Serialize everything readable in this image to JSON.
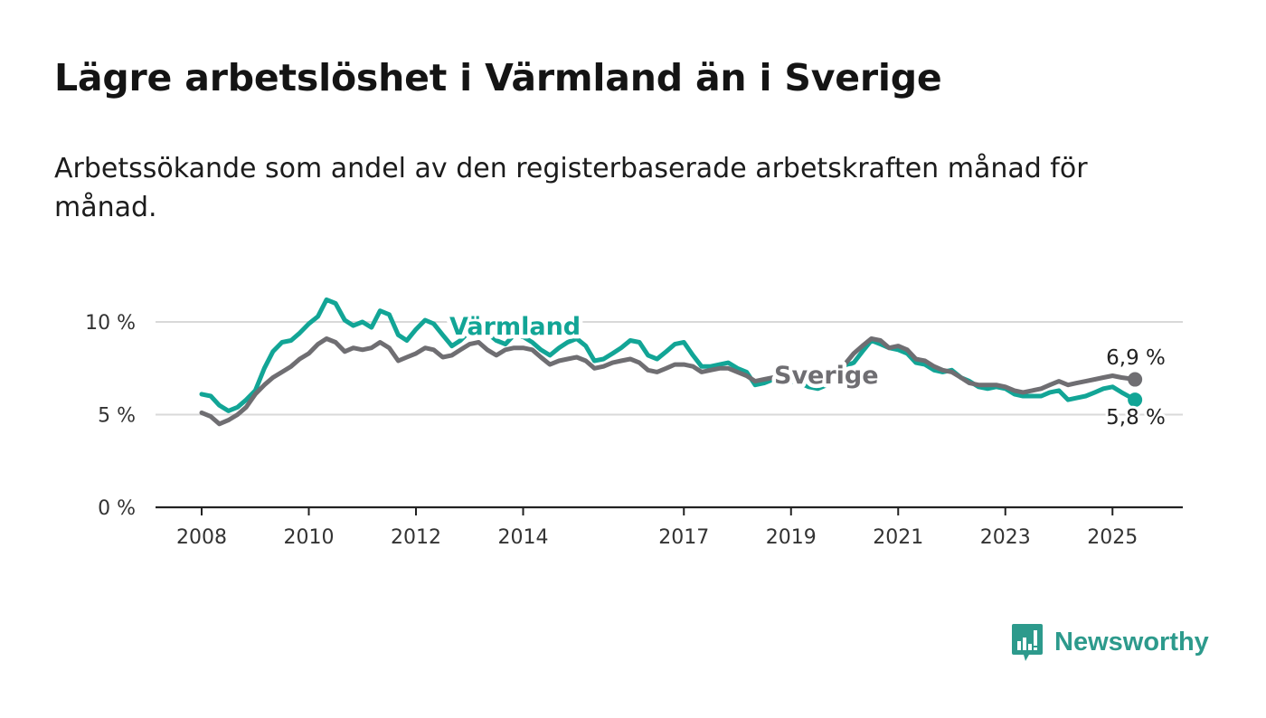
{
  "title": "Lägre arbetslöshet i Värmland än i Sverige",
  "subtitle": "Arbetssökande som andel av den registerbaserade arbetskraften månad för månad.",
  "brand": {
    "name": "Newsworthy",
    "color": "#2d9a8c"
  },
  "colors": {
    "varmland": "#12a596",
    "sverige": "#6f6e72",
    "grid": "#d9d9d9",
    "axis": "#222222"
  },
  "chart_data": {
    "type": "line",
    "title": "Lägre arbetslöshet i Värmland än i Sverige",
    "subtitle": "Arbetssökande som andel av den registerbaserade arbetskraften månad för månad.",
    "x_unit": "year",
    "xlim": [
      2007.5,
      2026.3
    ],
    "ylim": [
      0,
      10
    ],
    "y_ticks": [
      0,
      5,
      10
    ],
    "y_tick_labels": [
      "0 %",
      "5 %",
      "10 %"
    ],
    "x_ticks": [
      2008,
      2010,
      2012,
      2014,
      2017,
      2019,
      2021,
      2023,
      2025
    ],
    "x_tick_labels": [
      "2008",
      "2010",
      "2012",
      "2014",
      "2017",
      "2019",
      "2021",
      "2023",
      "2025"
    ],
    "grid": true,
    "series": [
      {
        "name": "Värmland",
        "color": "#12a596",
        "end_label": "5,8 %",
        "points": [
          [
            2008.0,
            6.1
          ],
          [
            2008.17,
            6.0
          ],
          [
            2008.33,
            5.5
          ],
          [
            2008.5,
            5.2
          ],
          [
            2008.67,
            5.4
          ],
          [
            2008.83,
            5.8
          ],
          [
            2009.0,
            6.3
          ],
          [
            2009.17,
            7.5
          ],
          [
            2009.33,
            8.4
          ],
          [
            2009.5,
            8.9
          ],
          [
            2009.67,
            9.0
          ],
          [
            2009.83,
            9.4
          ],
          [
            2010.0,
            9.9
          ],
          [
            2010.17,
            10.3
          ],
          [
            2010.33,
            11.2
          ],
          [
            2010.5,
            11.0
          ],
          [
            2010.67,
            10.1
          ],
          [
            2010.83,
            9.8
          ],
          [
            2011.0,
            10.0
          ],
          [
            2011.17,
            9.7
          ],
          [
            2011.33,
            10.6
          ],
          [
            2011.5,
            10.4
          ],
          [
            2011.67,
            9.3
          ],
          [
            2011.83,
            9.0
          ],
          [
            2012.0,
            9.6
          ],
          [
            2012.17,
            10.1
          ],
          [
            2012.33,
            9.9
          ],
          [
            2012.5,
            9.3
          ],
          [
            2012.67,
            8.7
          ],
          [
            2012.83,
            9.0
          ],
          [
            2013.0,
            9.5
          ],
          [
            2013.17,
            9.6
          ],
          [
            2013.33,
            9.4
          ],
          [
            2013.5,
            9.0
          ],
          [
            2013.67,
            8.8
          ],
          [
            2013.83,
            9.3
          ],
          [
            2014.0,
            9.2
          ],
          [
            2014.17,
            8.9
          ],
          [
            2014.33,
            8.5
          ],
          [
            2014.5,
            8.2
          ],
          [
            2014.67,
            8.6
          ],
          [
            2014.83,
            8.9
          ],
          [
            2015.0,
            9.1
          ],
          [
            2015.17,
            8.7
          ],
          [
            2015.33,
            7.9
          ],
          [
            2015.5,
            8.0
          ],
          [
            2015.67,
            8.3
          ],
          [
            2015.83,
            8.6
          ],
          [
            2016.0,
            9.0
          ],
          [
            2016.17,
            8.9
          ],
          [
            2016.33,
            8.2
          ],
          [
            2016.5,
            8.0
          ],
          [
            2016.67,
            8.4
          ],
          [
            2016.83,
            8.8
          ],
          [
            2017.0,
            8.9
          ],
          [
            2017.17,
            8.2
          ],
          [
            2017.33,
            7.6
          ],
          [
            2017.5,
            7.6
          ],
          [
            2017.67,
            7.7
          ],
          [
            2017.83,
            7.8
          ],
          [
            2018.0,
            7.5
          ],
          [
            2018.17,
            7.3
          ],
          [
            2018.33,
            6.6
          ],
          [
            2018.5,
            6.7
          ],
          [
            2018.67,
            6.9
          ],
          [
            2018.83,
            6.9
          ],
          [
            2019.0,
            6.8
          ],
          [
            2019.17,
            6.7
          ],
          [
            2019.33,
            6.5
          ],
          [
            2019.5,
            6.4
          ],
          [
            2019.67,
            6.6
          ],
          [
            2019.83,
            7.0
          ],
          [
            2020.0,
            7.6
          ],
          [
            2020.17,
            7.8
          ],
          [
            2020.33,
            8.4
          ],
          [
            2020.5,
            9.0
          ],
          [
            2020.67,
            8.8
          ],
          [
            2020.83,
            8.6
          ],
          [
            2021.0,
            8.5
          ],
          [
            2021.17,
            8.3
          ],
          [
            2021.33,
            7.8
          ],
          [
            2021.5,
            7.7
          ],
          [
            2021.67,
            7.4
          ],
          [
            2021.83,
            7.3
          ],
          [
            2022.0,
            7.4
          ],
          [
            2022.17,
            7.0
          ],
          [
            2022.33,
            6.8
          ],
          [
            2022.5,
            6.5
          ],
          [
            2022.67,
            6.4
          ],
          [
            2022.83,
            6.5
          ],
          [
            2023.0,
            6.4
          ],
          [
            2023.17,
            6.1
          ],
          [
            2023.33,
            6.0
          ],
          [
            2023.5,
            6.0
          ],
          [
            2023.67,
            6.0
          ],
          [
            2023.83,
            6.2
          ],
          [
            2024.0,
            6.3
          ],
          [
            2024.17,
            5.8
          ],
          [
            2024.33,
            5.9
          ],
          [
            2024.5,
            6.0
          ],
          [
            2024.67,
            6.2
          ],
          [
            2024.83,
            6.4
          ],
          [
            2025.0,
            6.5
          ],
          [
            2025.17,
            6.2
          ],
          [
            2025.42,
            5.8
          ]
        ]
      },
      {
        "name": "Sverige",
        "color": "#6f6e72",
        "end_label": "6,9 %",
        "points": [
          [
            2008.0,
            5.1
          ],
          [
            2008.17,
            4.9
          ],
          [
            2008.33,
            4.5
          ],
          [
            2008.5,
            4.7
          ],
          [
            2008.67,
            5.0
          ],
          [
            2008.83,
            5.4
          ],
          [
            2009.0,
            6.1
          ],
          [
            2009.17,
            6.6
          ],
          [
            2009.33,
            7.0
          ],
          [
            2009.5,
            7.3
          ],
          [
            2009.67,
            7.6
          ],
          [
            2009.83,
            8.0
          ],
          [
            2010.0,
            8.3
          ],
          [
            2010.17,
            8.8
          ],
          [
            2010.33,
            9.1
          ],
          [
            2010.5,
            8.9
          ],
          [
            2010.67,
            8.4
          ],
          [
            2010.83,
            8.6
          ],
          [
            2011.0,
            8.5
          ],
          [
            2011.17,
            8.6
          ],
          [
            2011.33,
            8.9
          ],
          [
            2011.5,
            8.6
          ],
          [
            2011.67,
            7.9
          ],
          [
            2011.83,
            8.1
          ],
          [
            2012.0,
            8.3
          ],
          [
            2012.17,
            8.6
          ],
          [
            2012.33,
            8.5
          ],
          [
            2012.5,
            8.1
          ],
          [
            2012.67,
            8.2
          ],
          [
            2012.83,
            8.5
          ],
          [
            2013.0,
            8.8
          ],
          [
            2013.17,
            8.9
          ],
          [
            2013.33,
            8.5
          ],
          [
            2013.5,
            8.2
          ],
          [
            2013.67,
            8.5
          ],
          [
            2013.83,
            8.6
          ],
          [
            2014.0,
            8.6
          ],
          [
            2014.17,
            8.5
          ],
          [
            2014.33,
            8.1
          ],
          [
            2014.5,
            7.7
          ],
          [
            2014.67,
            7.9
          ],
          [
            2014.83,
            8.0
          ],
          [
            2015.0,
            8.1
          ],
          [
            2015.17,
            7.9
          ],
          [
            2015.33,
            7.5
          ],
          [
            2015.5,
            7.6
          ],
          [
            2015.67,
            7.8
          ],
          [
            2015.83,
            7.9
          ],
          [
            2016.0,
            8.0
          ],
          [
            2016.17,
            7.8
          ],
          [
            2016.33,
            7.4
          ],
          [
            2016.5,
            7.3
          ],
          [
            2016.67,
            7.5
          ],
          [
            2016.83,
            7.7
          ],
          [
            2017.0,
            7.7
          ],
          [
            2017.17,
            7.6
          ],
          [
            2017.33,
            7.3
          ],
          [
            2017.5,
            7.4
          ],
          [
            2017.67,
            7.5
          ],
          [
            2017.83,
            7.5
          ],
          [
            2018.0,
            7.3
          ],
          [
            2018.17,
            7.1
          ],
          [
            2018.33,
            6.8
          ],
          [
            2018.5,
            6.9
          ],
          [
            2018.67,
            7.0
          ],
          [
            2018.83,
            6.9
          ],
          [
            2019.0,
            6.9
          ],
          [
            2019.17,
            6.9
          ],
          [
            2019.33,
            6.9
          ],
          [
            2019.5,
            7.0
          ],
          [
            2019.67,
            7.1
          ],
          [
            2019.83,
            7.3
          ],
          [
            2020.0,
            7.7
          ],
          [
            2020.17,
            8.3
          ],
          [
            2020.33,
            8.7
          ],
          [
            2020.5,
            9.1
          ],
          [
            2020.67,
            9.0
          ],
          [
            2020.83,
            8.6
          ],
          [
            2021.0,
            8.7
          ],
          [
            2021.17,
            8.5
          ],
          [
            2021.33,
            8.0
          ],
          [
            2021.5,
            7.9
          ],
          [
            2021.67,
            7.6
          ],
          [
            2021.83,
            7.4
          ],
          [
            2022.0,
            7.3
          ],
          [
            2022.17,
            7.0
          ],
          [
            2022.33,
            6.7
          ],
          [
            2022.5,
            6.6
          ],
          [
            2022.67,
            6.6
          ],
          [
            2022.83,
            6.6
          ],
          [
            2023.0,
            6.5
          ],
          [
            2023.17,
            6.3
          ],
          [
            2023.33,
            6.2
          ],
          [
            2023.5,
            6.3
          ],
          [
            2023.67,
            6.4
          ],
          [
            2023.83,
            6.6
          ],
          [
            2024.0,
            6.8
          ],
          [
            2024.17,
            6.6
          ],
          [
            2024.33,
            6.7
          ],
          [
            2024.5,
            6.8
          ],
          [
            2024.67,
            6.9
          ],
          [
            2024.83,
            7.0
          ],
          [
            2025.0,
            7.1
          ],
          [
            2025.17,
            7.0
          ],
          [
            2025.42,
            6.9
          ]
        ]
      }
    ],
    "annotations": [
      "Värmland",
      "Sverige",
      "6,9 %",
      "5,8 %"
    ]
  }
}
